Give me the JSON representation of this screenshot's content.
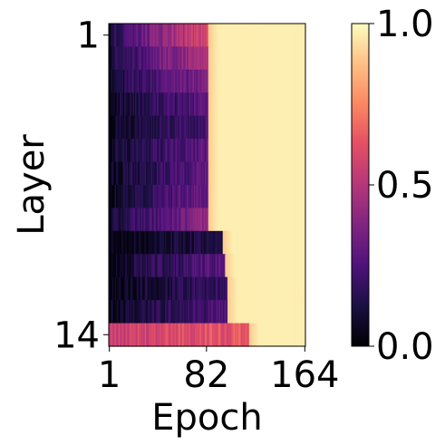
{
  "chart_data": {
    "type": "heatmap",
    "title": "",
    "xlabel": "Epoch",
    "ylabel": "Layer",
    "x_range": [
      1,
      164
    ],
    "y_range": [
      1,
      14
    ],
    "x_ticks": [
      {
        "value": 1,
        "label": "1"
      },
      {
        "value": 82,
        "label": "82"
      },
      {
        "value": 164,
        "label": "164"
      }
    ],
    "y_ticks": [
      {
        "value": 1,
        "label": "1"
      },
      {
        "value": 14,
        "label": "14"
      }
    ],
    "colormap": "magma",
    "colorbar": {
      "min": 0.0,
      "max": 1.0,
      "ticks": [
        {
          "value": 0.0,
          "label": "0.0"
        },
        {
          "value": 0.5,
          "label": "0.5"
        },
        {
          "value": 1.0,
          "label": "1.0"
        }
      ]
    },
    "layers": [
      {
        "layer": 1,
        "early": 0.12,
        "mid": 0.6,
        "saturate_epoch": 84
      },
      {
        "layer": 2,
        "early": 0.1,
        "mid": 0.5,
        "saturate_epoch": 84
      },
      {
        "layer": 3,
        "early": 0.08,
        "mid": 0.38,
        "saturate_epoch": 84
      },
      {
        "layer": 4,
        "early": 0.05,
        "mid": 0.28,
        "saturate_epoch": 84
      },
      {
        "layer": 5,
        "early": 0.05,
        "mid": 0.24,
        "saturate_epoch": 84
      },
      {
        "layer": 6,
        "early": 0.06,
        "mid": 0.3,
        "saturate_epoch": 84
      },
      {
        "layer": 7,
        "early": 0.05,
        "mid": 0.3,
        "saturate_epoch": 84
      },
      {
        "layer": 8,
        "early": 0.05,
        "mid": 0.33,
        "saturate_epoch": 84
      },
      {
        "layer": 9,
        "early": 0.07,
        "mid": 0.4,
        "saturate_epoch": 84
      },
      {
        "layer": 10,
        "early": 0.03,
        "mid": 0.14,
        "saturate_epoch": 96
      },
      {
        "layer": 11,
        "early": 0.04,
        "mid": 0.3,
        "saturate_epoch": 98
      },
      {
        "layer": 12,
        "early": 0.03,
        "mid": 0.2,
        "saturate_epoch": 100
      },
      {
        "layer": 13,
        "early": 0.04,
        "mid": 0.26,
        "saturate_epoch": 100
      },
      {
        "layer": 14,
        "early": 0.55,
        "mid": 0.65,
        "saturate_epoch": 118
      }
    ]
  }
}
